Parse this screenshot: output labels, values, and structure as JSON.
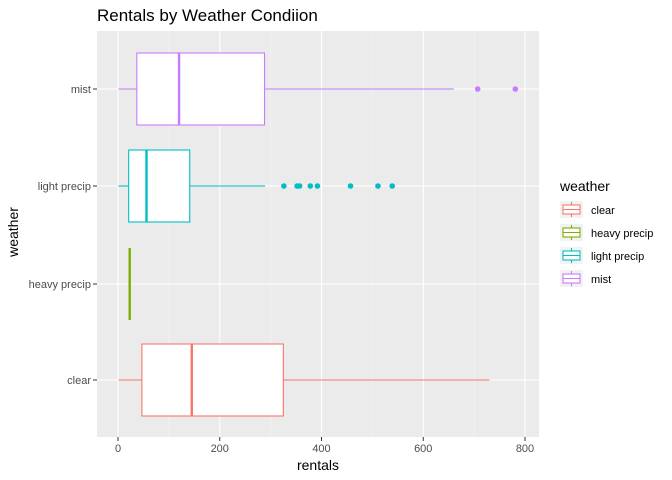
{
  "chart_data": {
    "type": "boxplot",
    "title": "Rentals by Weather Condiion",
    "xlabel": "rentals",
    "ylabel": "weather",
    "xlim": [
      -20,
      820
    ],
    "x_ticks": [
      0,
      200,
      400,
      600,
      800
    ],
    "categories": [
      "clear",
      "heavy precip",
      "light precip",
      "mist"
    ],
    "grid": true,
    "legend": {
      "title": "weather",
      "placement": "right",
      "entries": [
        "clear",
        "heavy precip",
        "light precip",
        "mist"
      ]
    },
    "colors": {
      "clear": "#F8766D",
      "heavy precip": "#7CAE00",
      "light precip": "#00BFC4",
      "mist": "#C77CFF",
      "panel_bg": "#EBEBEB",
      "grid_major": "#FFFFFF"
    },
    "series": [
      {
        "name": "clear",
        "min": 1,
        "q1": 47,
        "median": 145,
        "q3": 325,
        "max": 730,
        "outliers": []
      },
      {
        "name": "heavy precip",
        "min": 23,
        "q1": 23,
        "median": 23,
        "q3": 23,
        "max": 23,
        "outliers": []
      },
      {
        "name": "light precip",
        "min": 1,
        "q1": 21,
        "median": 56,
        "q3": 141,
        "max": 289,
        "outliers": [
          326,
          352,
          357,
          378,
          392,
          457,
          511,
          539
        ]
      },
      {
        "name": "mist",
        "min": 1,
        "q1": 37,
        "median": 120,
        "q3": 288,
        "max": 660,
        "outliers": [
          707,
          781
        ]
      }
    ]
  }
}
